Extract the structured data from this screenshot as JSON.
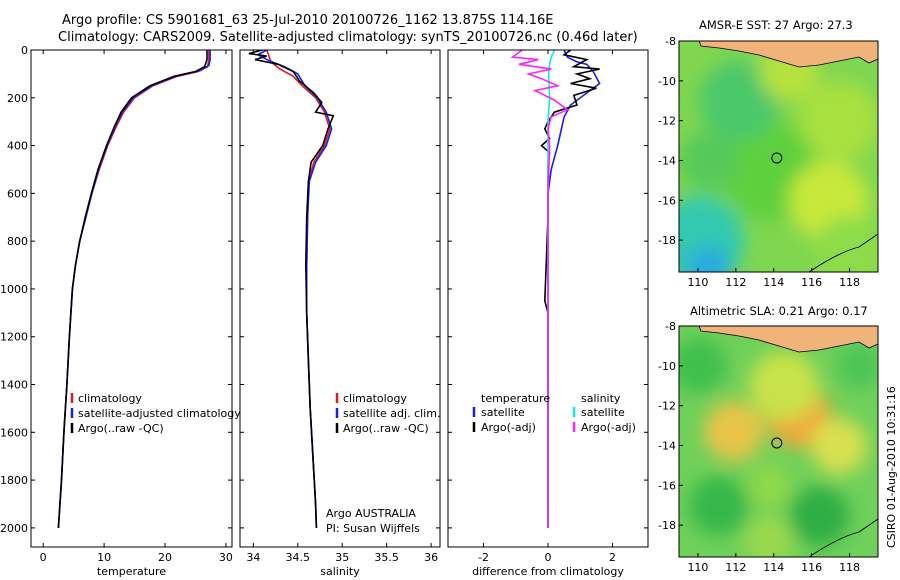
{
  "header": {
    "line1": "Argo profile: CS 5901681_63 25-Jul-2010 20100726_1162 13.875S 114.16E",
    "line2": "Climatology: CARS2009. Satellite-adjusted climatology: synTS_20100726.nc (0.46d later)"
  },
  "colors": {
    "climatology": "#e31a1c",
    "satellite": "#1a1aff",
    "argo": "#000000",
    "sal_satellite": "#16e6e6",
    "sal_argo": "#ff22ff"
  },
  "chart_data": [
    {
      "type": "line",
      "name": "temperature-profile",
      "xlabel": "temperature",
      "ylabel": "",
      "xlim": [
        -2,
        31
      ],
      "ylim": [
        2080,
        0
      ],
      "xticks": [
        0,
        10,
        20,
        30
      ],
      "yticks": [
        0,
        200,
        400,
        600,
        800,
        1000,
        1200,
        1400,
        1600,
        1800,
        2000
      ],
      "legend": [
        "climatology",
        "satellite-adjusted climatology",
        "Argo(..raw -QC)"
      ],
      "legend_position": "lower-right",
      "series": [
        {
          "name": "climatology",
          "points": [
            [
              27.2,
              0
            ],
            [
              27.2,
              40
            ],
            [
              27.0,
              70
            ],
            [
              25.5,
              90
            ],
            [
              22,
              110
            ],
            [
              18,
              150
            ],
            [
              15,
              200
            ],
            [
              13.2,
              260
            ],
            [
              12,
              320
            ],
            [
              10.6,
              400
            ],
            [
              9.2,
              500
            ],
            [
              8,
              600
            ],
            [
              7,
              700
            ],
            [
              6,
              800
            ],
            [
              5.3,
              900
            ],
            [
              4.8,
              1000
            ],
            [
              4.3,
              1200
            ],
            [
              3.9,
              1400
            ],
            [
              3.4,
              1600
            ],
            [
              3,
              1800
            ],
            [
              2.5,
              2000
            ]
          ]
        },
        {
          "name": "satellite-adjusted climatology",
          "points": [
            [
              27.4,
              0
            ],
            [
              27.4,
              40
            ],
            [
              27.2,
              65
            ],
            [
              25.5,
              88
            ],
            [
              22,
              108
            ],
            [
              17.8,
              150
            ],
            [
              14.8,
              200
            ],
            [
              13,
              260
            ],
            [
              11.8,
              320
            ],
            [
              10.5,
              400
            ],
            [
              9.1,
              500
            ],
            [
              8,
              600
            ],
            [
              7,
              700
            ],
            [
              6,
              800
            ],
            [
              5.3,
              900
            ],
            [
              4.8,
              1000
            ],
            [
              4.3,
              1200
            ],
            [
              3.9,
              1400
            ],
            [
              3.4,
              1600
            ],
            [
              3,
              1800
            ],
            [
              2.5,
              2000
            ]
          ]
        },
        {
          "name": "Argo(..raw -QC)",
          "points": [
            [
              26.9,
              0
            ],
            [
              26.9,
              40
            ],
            [
              26.5,
              70
            ],
            [
              25,
              90
            ],
            [
              21.5,
              110
            ],
            [
              17.5,
              150
            ],
            [
              14.5,
              200
            ],
            [
              12.8,
              260
            ],
            [
              11.7,
              320
            ],
            [
              10.4,
              400
            ],
            [
              9,
              500
            ],
            [
              7.9,
              600
            ],
            [
              6.9,
              700
            ],
            [
              6,
              800
            ],
            [
              5.3,
              900
            ],
            [
              4.8,
              1000
            ],
            [
              4.3,
              1200
            ],
            [
              3.9,
              1400
            ],
            [
              3.4,
              1600
            ],
            [
              3,
              1800
            ],
            [
              2.5,
              2000
            ]
          ]
        }
      ]
    },
    {
      "type": "line",
      "name": "salinity-profile",
      "xlabel": "salinity",
      "ylabel": "",
      "xlim": [
        33.85,
        36.1
      ],
      "ylim": [
        2080,
        0
      ],
      "xticks": [
        34,
        34.5,
        35,
        35.5,
        36
      ],
      "legend": [
        "climatology",
        "satellite adj. clim.",
        "Argo(..raw -QC)"
      ],
      "legend_position": "lower-right",
      "annotation": [
        "Argo AUSTRALIA",
        "PI: Susan Wijffels"
      ],
      "series": [
        {
          "name": "climatology",
          "points": [
            [
              34.15,
              0
            ],
            [
              34.2,
              50
            ],
            [
              34.3,
              80
            ],
            [
              34.45,
              110
            ],
            [
              34.55,
              150
            ],
            [
              34.7,
              200
            ],
            [
              34.8,
              260
            ],
            [
              34.86,
              330
            ],
            [
              34.8,
              400
            ],
            [
              34.68,
              470
            ],
            [
              34.62,
              550
            ],
            [
              34.61,
              700
            ],
            [
              34.6,
              900
            ],
            [
              34.6,
              1100
            ],
            [
              34.62,
              1300
            ],
            [
              34.64,
              1500
            ],
            [
              34.67,
              1700
            ],
            [
              34.7,
              1900
            ],
            [
              34.71,
              2000
            ]
          ]
        },
        {
          "name": "satellite adj. clim.",
          "points": [
            [
              34.15,
              0
            ],
            [
              34.05,
              20
            ],
            [
              34.18,
              45
            ],
            [
              34.35,
              70
            ],
            [
              34.5,
              100
            ],
            [
              34.58,
              150
            ],
            [
              34.72,
              200
            ],
            [
              34.82,
              260
            ],
            [
              34.88,
              330
            ],
            [
              34.82,
              400
            ],
            [
              34.7,
              470
            ],
            [
              34.63,
              550
            ],
            [
              34.61,
              700
            ],
            [
              34.6,
              900
            ],
            [
              34.6,
              1100
            ],
            [
              34.62,
              1300
            ],
            [
              34.64,
              1500
            ],
            [
              34.67,
              1700
            ],
            [
              34.7,
              1900
            ],
            [
              34.71,
              2000
            ]
          ]
        },
        {
          "name": "Argo(..raw -QC)",
          "points": [
            [
              34.1,
              0
            ],
            [
              33.95,
              15
            ],
            [
              34.15,
              25
            ],
            [
              34.02,
              40
            ],
            [
              34.28,
              60
            ],
            [
              34.45,
              90
            ],
            [
              34.52,
              130
            ],
            [
              34.68,
              180
            ],
            [
              34.77,
              220
            ],
            [
              34.7,
              260
            ],
            [
              34.9,
              275
            ],
            [
              34.84,
              330
            ],
            [
              34.78,
              400
            ],
            [
              34.65,
              470
            ],
            [
              34.62,
              550
            ],
            [
              34.6,
              700
            ],
            [
              34.59,
              900
            ],
            [
              34.6,
              1100
            ],
            [
              34.62,
              1300
            ],
            [
              34.64,
              1500
            ],
            [
              34.67,
              1700
            ],
            [
              34.7,
              1900
            ],
            [
              34.71,
              2000
            ]
          ]
        }
      ]
    },
    {
      "type": "line",
      "name": "difference-profile",
      "xlabel": "difference from climatology",
      "ylabel": "",
      "xlim": [
        -3.1,
        3.1
      ],
      "ylim": [
        2080,
        0
      ],
      "xticks": [
        -2,
        0,
        2
      ],
      "legend": [
        "temperature",
        "satellite",
        "Argo(-adj)",
        "salinity",
        "satellite",
        "Argo(-adj)"
      ],
      "legend_position": "lower-center",
      "series": [
        {
          "name": "temperature satellite",
          "points": [
            [
              0.5,
              0
            ],
            [
              0.6,
              30
            ],
            [
              0.9,
              50
            ],
            [
              1.2,
              60
            ],
            [
              1.4,
              90
            ],
            [
              1.6,
              140
            ],
            [
              1.2,
              180
            ],
            [
              0.7,
              230
            ],
            [
              0.5,
              280
            ],
            [
              0.4,
              340
            ],
            [
              0.3,
              400
            ],
            [
              0.1,
              500
            ],
            [
              0,
              600
            ],
            [
              0,
              800
            ],
            [
              0,
              1200
            ],
            [
              0,
              1600
            ],
            [
              0,
              2000
            ]
          ]
        },
        {
          "name": "temperature Argo(-adj)",
          "points": [
            [
              0.7,
              0
            ],
            [
              0.5,
              20
            ],
            [
              1.2,
              40
            ],
            [
              0.8,
              70
            ],
            [
              1.6,
              80
            ],
            [
              0.9,
              100
            ],
            [
              1.3,
              120
            ],
            [
              0.7,
              140
            ],
            [
              1.5,
              160
            ],
            [
              0.8,
              190
            ],
            [
              0.9,
              230
            ],
            [
              0.2,
              260
            ],
            [
              0,
              300
            ],
            [
              -0.1,
              330
            ],
            [
              0.05,
              370
            ],
            [
              -0.2,
              400
            ],
            [
              0.05,
              430
            ],
            [
              0,
              480
            ],
            [
              0,
              700
            ],
            [
              -0.1,
              1050
            ],
            [
              0,
              1100
            ],
            [
              0,
              1600
            ],
            [
              0,
              2000
            ]
          ]
        },
        {
          "name": "salinity satellite",
          "points": [
            [
              0.2,
              0
            ],
            [
              0.1,
              30
            ],
            [
              0.05,
              60
            ],
            [
              0.02,
              100
            ],
            [
              0.05,
              200
            ],
            [
              0,
              300
            ],
            [
              0,
              600
            ],
            [
              0,
              1000
            ],
            [
              0,
              1400
            ],
            [
              0,
              2000
            ]
          ]
        },
        {
          "name": "salinity Argo(-adj)",
          "points": [
            [
              -0.8,
              0
            ],
            [
              -1.1,
              30
            ],
            [
              -0.3,
              40
            ],
            [
              -0.9,
              60
            ],
            [
              0.1,
              80
            ],
            [
              -0.6,
              100
            ],
            [
              -0.2,
              120
            ],
            [
              0.3,
              150
            ],
            [
              -0.4,
              170
            ],
            [
              0.2,
              210
            ],
            [
              0.6,
              250
            ],
            [
              0.1,
              280
            ],
            [
              0,
              330
            ],
            [
              0.05,
              400
            ],
            [
              0,
              600
            ],
            [
              0,
              1000
            ],
            [
              0,
              1500
            ],
            [
              0,
              2000
            ]
          ]
        }
      ]
    }
  ],
  "maps": [
    {
      "name": "sst-map",
      "title": "AMSR-E SST: 27 Argo: 27.3",
      "xticks": [
        "110",
        "112",
        "114",
        "116",
        "118"
      ],
      "yticks": [
        "-8",
        "-10",
        "-12",
        "-14",
        "-16",
        "-18"
      ],
      "xlim": [
        109,
        119.5
      ],
      "ylim": [
        -19.6,
        -8
      ],
      "marker": [
        114.16,
        -13.875
      ]
    },
    {
      "name": "sla-map",
      "title": "Altimetric SLA: 0.21 Argo: 0.17",
      "xticks": [
        "110",
        "112",
        "114",
        "116",
        "118"
      ],
      "yticks": [
        "-8",
        "-10",
        "-12",
        "-14",
        "-16",
        "-18"
      ],
      "xlim": [
        109,
        119.5
      ],
      "ylim": [
        -19.6,
        -8
      ],
      "marker": [
        114.16,
        -13.875
      ]
    }
  ],
  "side_label": "CSIRO 01-Aug-2010 10:31:16"
}
